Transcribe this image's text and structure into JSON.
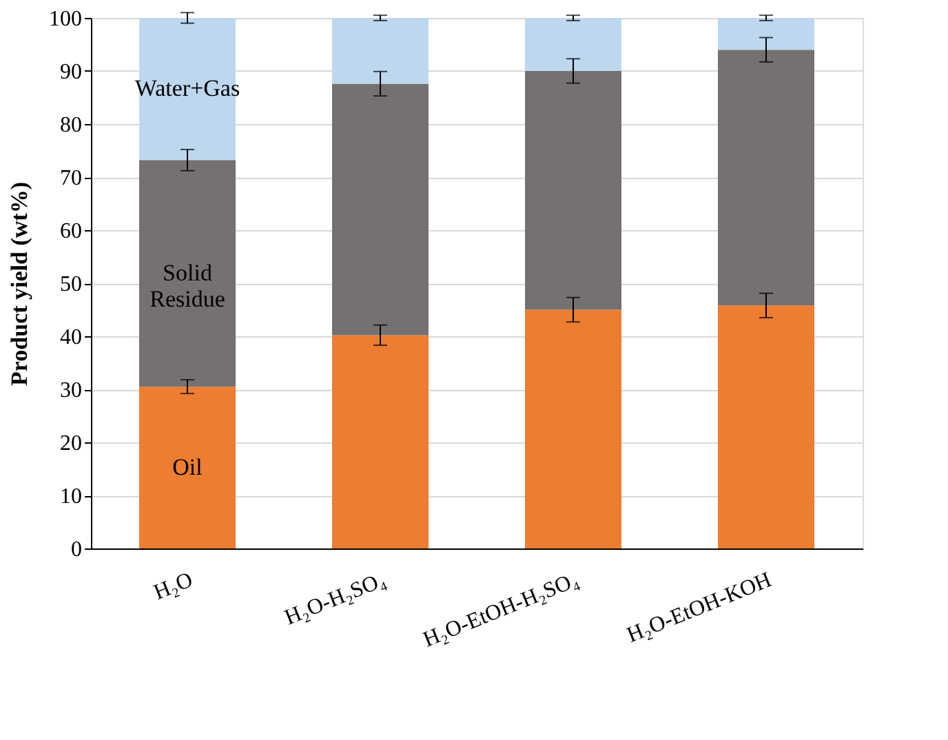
{
  "chart_data": {
    "type": "bar",
    "stacked": true,
    "ylabel": "Product yield (wt%)",
    "categories": [
      "H₂O",
      "H₂O-H₂SO₄",
      "H₂O-EtOH-H₂SO₄",
      "H₂O-EtOH-KOH"
    ],
    "series": [
      {
        "name": "Oil",
        "color": "#ed7d31",
        "values": [
          30.5,
          40.2,
          45.0,
          45.8
        ],
        "errors": [
          1.3,
          1.9,
          2.3,
          2.3
        ]
      },
      {
        "name": "Solid Residue",
        "color": "#757171",
        "values": [
          42.7,
          47.4,
          45.0,
          48.2
        ],
        "errors": [
          2.0,
          2.3,
          2.3,
          2.3
        ]
      },
      {
        "name": "Water+Gas",
        "color": "#bdd7ee",
        "values": [
          26.8,
          12.4,
          10.0,
          6.0
        ],
        "errors": [
          1.0,
          0.5,
          0.5,
          0.5
        ]
      }
    ],
    "ylim": [
      0,
      100
    ],
    "yticks": [
      0,
      10,
      20,
      30,
      40,
      50,
      60,
      70,
      80,
      90,
      100
    ],
    "grid": "y"
  }
}
